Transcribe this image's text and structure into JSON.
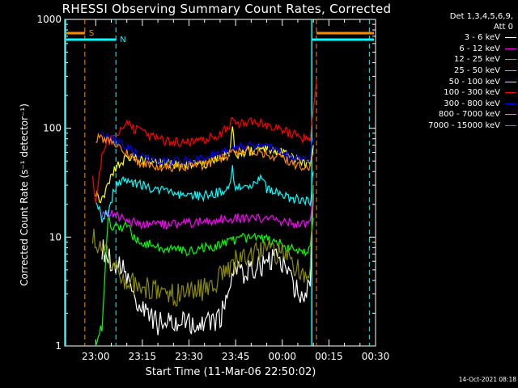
{
  "chart_data": {
    "type": "line",
    "title": "RHESSI Observing Summary Count Rates, Corrected",
    "ylabel": "Corrected Count Rate (s⁻¹ detector⁻¹)",
    "xlabel": "Start Time (11-Mar-06 22:50:02)",
    "y_scale": "log",
    "ylim": [
      1,
      1000
    ],
    "xlim": [
      "22:50:02",
      "00:30:00"
    ],
    "xticks": [
      "23:00",
      "23:15",
      "23:30",
      "23:45",
      "00:00",
      "00:15",
      "00:30"
    ],
    "yticks": [
      "1",
      "10",
      "100",
      "1000"
    ],
    "legend_header": [
      "Det 1,3,4,5,6,9,",
      "Att 0"
    ],
    "legend_position": "right",
    "markers": [
      {
        "label": "S",
        "color": "#ff8c00",
        "style": "dashed",
        "times": [
          "22:56:30",
          "00:11:00"
        ]
      },
      {
        "label": "N",
        "color": "#00ffff",
        "style": "dashed",
        "times": [
          "23:06:30",
          "00:28:00"
        ]
      }
    ],
    "series": [
      {
        "name": "3 - 6 keV",
        "color": "#ffffff",
        "x": [
          "23:02",
          "23:04",
          "23:06",
          "23:08",
          "23:10",
          "23:12",
          "23:14",
          "23:16",
          "23:20",
          "23:25",
          "23:30",
          "23:35",
          "23:40",
          "23:43",
          "23:45",
          "23:48",
          "23:50",
          "23:55",
          "23:58",
          "00:00",
          "00:02",
          "00:05",
          "00:07",
          "00:09",
          "00:10"
        ],
        "values": [
          8,
          6.5,
          5.5,
          5.5,
          4.5,
          3,
          2.2,
          2,
          1.6,
          1.6,
          1.6,
          1.6,
          1.7,
          3.5,
          5.5,
          4.5,
          5,
          5.5,
          6.5,
          5.5,
          4.5,
          3,
          2.8,
          3.5,
          25
        ]
      },
      {
        "name": "6 - 12 keV",
        "color": "#ff00ff",
        "x": [
          "23:02",
          "23:04",
          "23:06",
          "23:08",
          "23:10",
          "23:15",
          "23:20",
          "23:25",
          "23:30",
          "23:35",
          "23:40",
          "23:45",
          "23:50",
          "23:55",
          "00:00",
          "00:05",
          "00:09",
          "00:10"
        ],
        "values": [
          16,
          17,
          16,
          15,
          14,
          13,
          13,
          13,
          13.5,
          14,
          14.5,
          15,
          15,
          15,
          14,
          13,
          13,
          25
        ]
      },
      {
        "name": "12 - 25 keV",
        "color": "#00ff00",
        "x": [
          "23:00",
          "23:02",
          "23:04",
          "23:06",
          "23:08",
          "23:10",
          "23:12",
          "23:15",
          "23:20",
          "23:25",
          "23:30",
          "23:35",
          "23:40",
          "23:45",
          "23:50",
          "23:55",
          "00:00",
          "00:05",
          "00:09",
          "00:10"
        ],
        "values": [
          1.1,
          1.5,
          14,
          12,
          12,
          13,
          10,
          9,
          8,
          7.5,
          7.5,
          8,
          8.5,
          9.5,
          10,
          9.5,
          8.5,
          7.5,
          7.5,
          15
        ]
      },
      {
        "name": "25 - 50 keV",
        "color": "#00ffff",
        "x": [
          "23:00",
          "23:02",
          "23:04",
          "23:06",
          "23:08",
          "23:10",
          "23:12",
          "23:15",
          "23:20",
          "23:25",
          "23:30",
          "23:35",
          "23:40",
          "23:43",
          "23:44",
          "23:45",
          "23:48",
          "23:50",
          "23:52",
          "23:53",
          "23:55",
          "00:00",
          "00:05",
          "00:09",
          "00:10"
        ],
        "values": [
          22,
          15,
          17,
          28,
          33,
          33,
          32,
          30,
          27,
          25,
          24,
          24,
          26,
          30,
          42,
          29,
          28,
          29,
          32,
          38,
          28,
          24,
          22,
          21,
          40
        ]
      },
      {
        "name": "50 - 100 keV",
        "color": "#ffff00",
        "x": [
          "23:00",
          "23:02",
          "23:04",
          "23:06",
          "23:08",
          "23:10",
          "23:12",
          "23:15",
          "23:20",
          "23:25",
          "23:30",
          "23:35",
          "23:40",
          "23:43",
          "23:44",
          "23:45",
          "23:50",
          "23:55",
          "00:00",
          "00:05",
          "00:09",
          "00:10"
        ],
        "values": [
          25,
          22,
          30,
          42,
          48,
          55,
          55,
          52,
          48,
          46,
          45,
          47,
          52,
          60,
          95,
          58,
          62,
          65,
          60,
          50,
          45,
          70
        ]
      },
      {
        "name": "100 - 300 keV",
        "color": "#ff0000",
        "x": [
          "22:59",
          "23:00",
          "23:02",
          "23:04",
          "23:06",
          "23:08",
          "23:10",
          "23:12",
          "23:15",
          "23:20",
          "23:25",
          "23:30",
          "23:35",
          "23:40",
          "23:43",
          "23:44",
          "23:45",
          "23:50",
          "23:55",
          "00:00",
          "00:05",
          "00:09",
          "00:10",
          "00:11"
        ],
        "values": [
          40,
          20,
          55,
          75,
          80,
          95,
          110,
          100,
          90,
          78,
          74,
          73,
          76,
          90,
          105,
          125,
          108,
          115,
          108,
          95,
          85,
          78,
          140,
          280
        ]
      },
      {
        "name": "300 - 800 keV",
        "color": "#0000ff",
        "x": [
          "23:02",
          "23:04",
          "23:06",
          "23:08",
          "23:10",
          "23:12",
          "23:15",
          "23:20",
          "23:25",
          "23:30",
          "23:35",
          "23:40",
          "23:45",
          "23:50",
          "23:55",
          "00:00",
          "00:05",
          "00:09",
          "00:10"
        ],
        "values": [
          85,
          82,
          78,
          72,
          66,
          60,
          55,
          50,
          49,
          50,
          53,
          60,
          65,
          70,
          67,
          60,
          52,
          50,
          80
        ]
      },
      {
        "name": "800 - 7000 keV",
        "color": "#ff8c00",
        "x": [
          "23:00",
          "23:02",
          "23:04",
          "23:06",
          "23:08",
          "23:10",
          "23:12",
          "23:15",
          "23:20",
          "23:25",
          "23:30",
          "23:35",
          "23:40",
          "23:45",
          "23:50",
          "23:55",
          "00:00",
          "00:05",
          "00:09",
          "00:10"
        ],
        "values": [
          80,
          82,
          78,
          72,
          68,
          60,
          52,
          48,
          44,
          43,
          44,
          46,
          52,
          60,
          62,
          58,
          52,
          46,
          44,
          60
        ]
      },
      {
        "name": "7000 - 15000 keV",
        "color": "#8b8b00",
        "x": [
          "22:59",
          "23:01",
          "23:03",
          "23:05",
          "23:07",
          "23:10",
          "23:15",
          "23:20",
          "23:25",
          "23:30",
          "23:35",
          "23:40",
          "23:43",
          "23:45",
          "23:50",
          "23:55",
          "00:00",
          "00:05",
          "00:09",
          "00:10"
        ],
        "values": [
          9.5,
          9,
          7.5,
          6,
          5,
          4,
          3.5,
          3.2,
          3,
          3,
          3.3,
          4.2,
          5,
          6,
          7,
          7.5,
          7,
          5,
          4.5,
          30
        ]
      }
    ]
  },
  "timestamp": "14-Oct-2021 08:18"
}
